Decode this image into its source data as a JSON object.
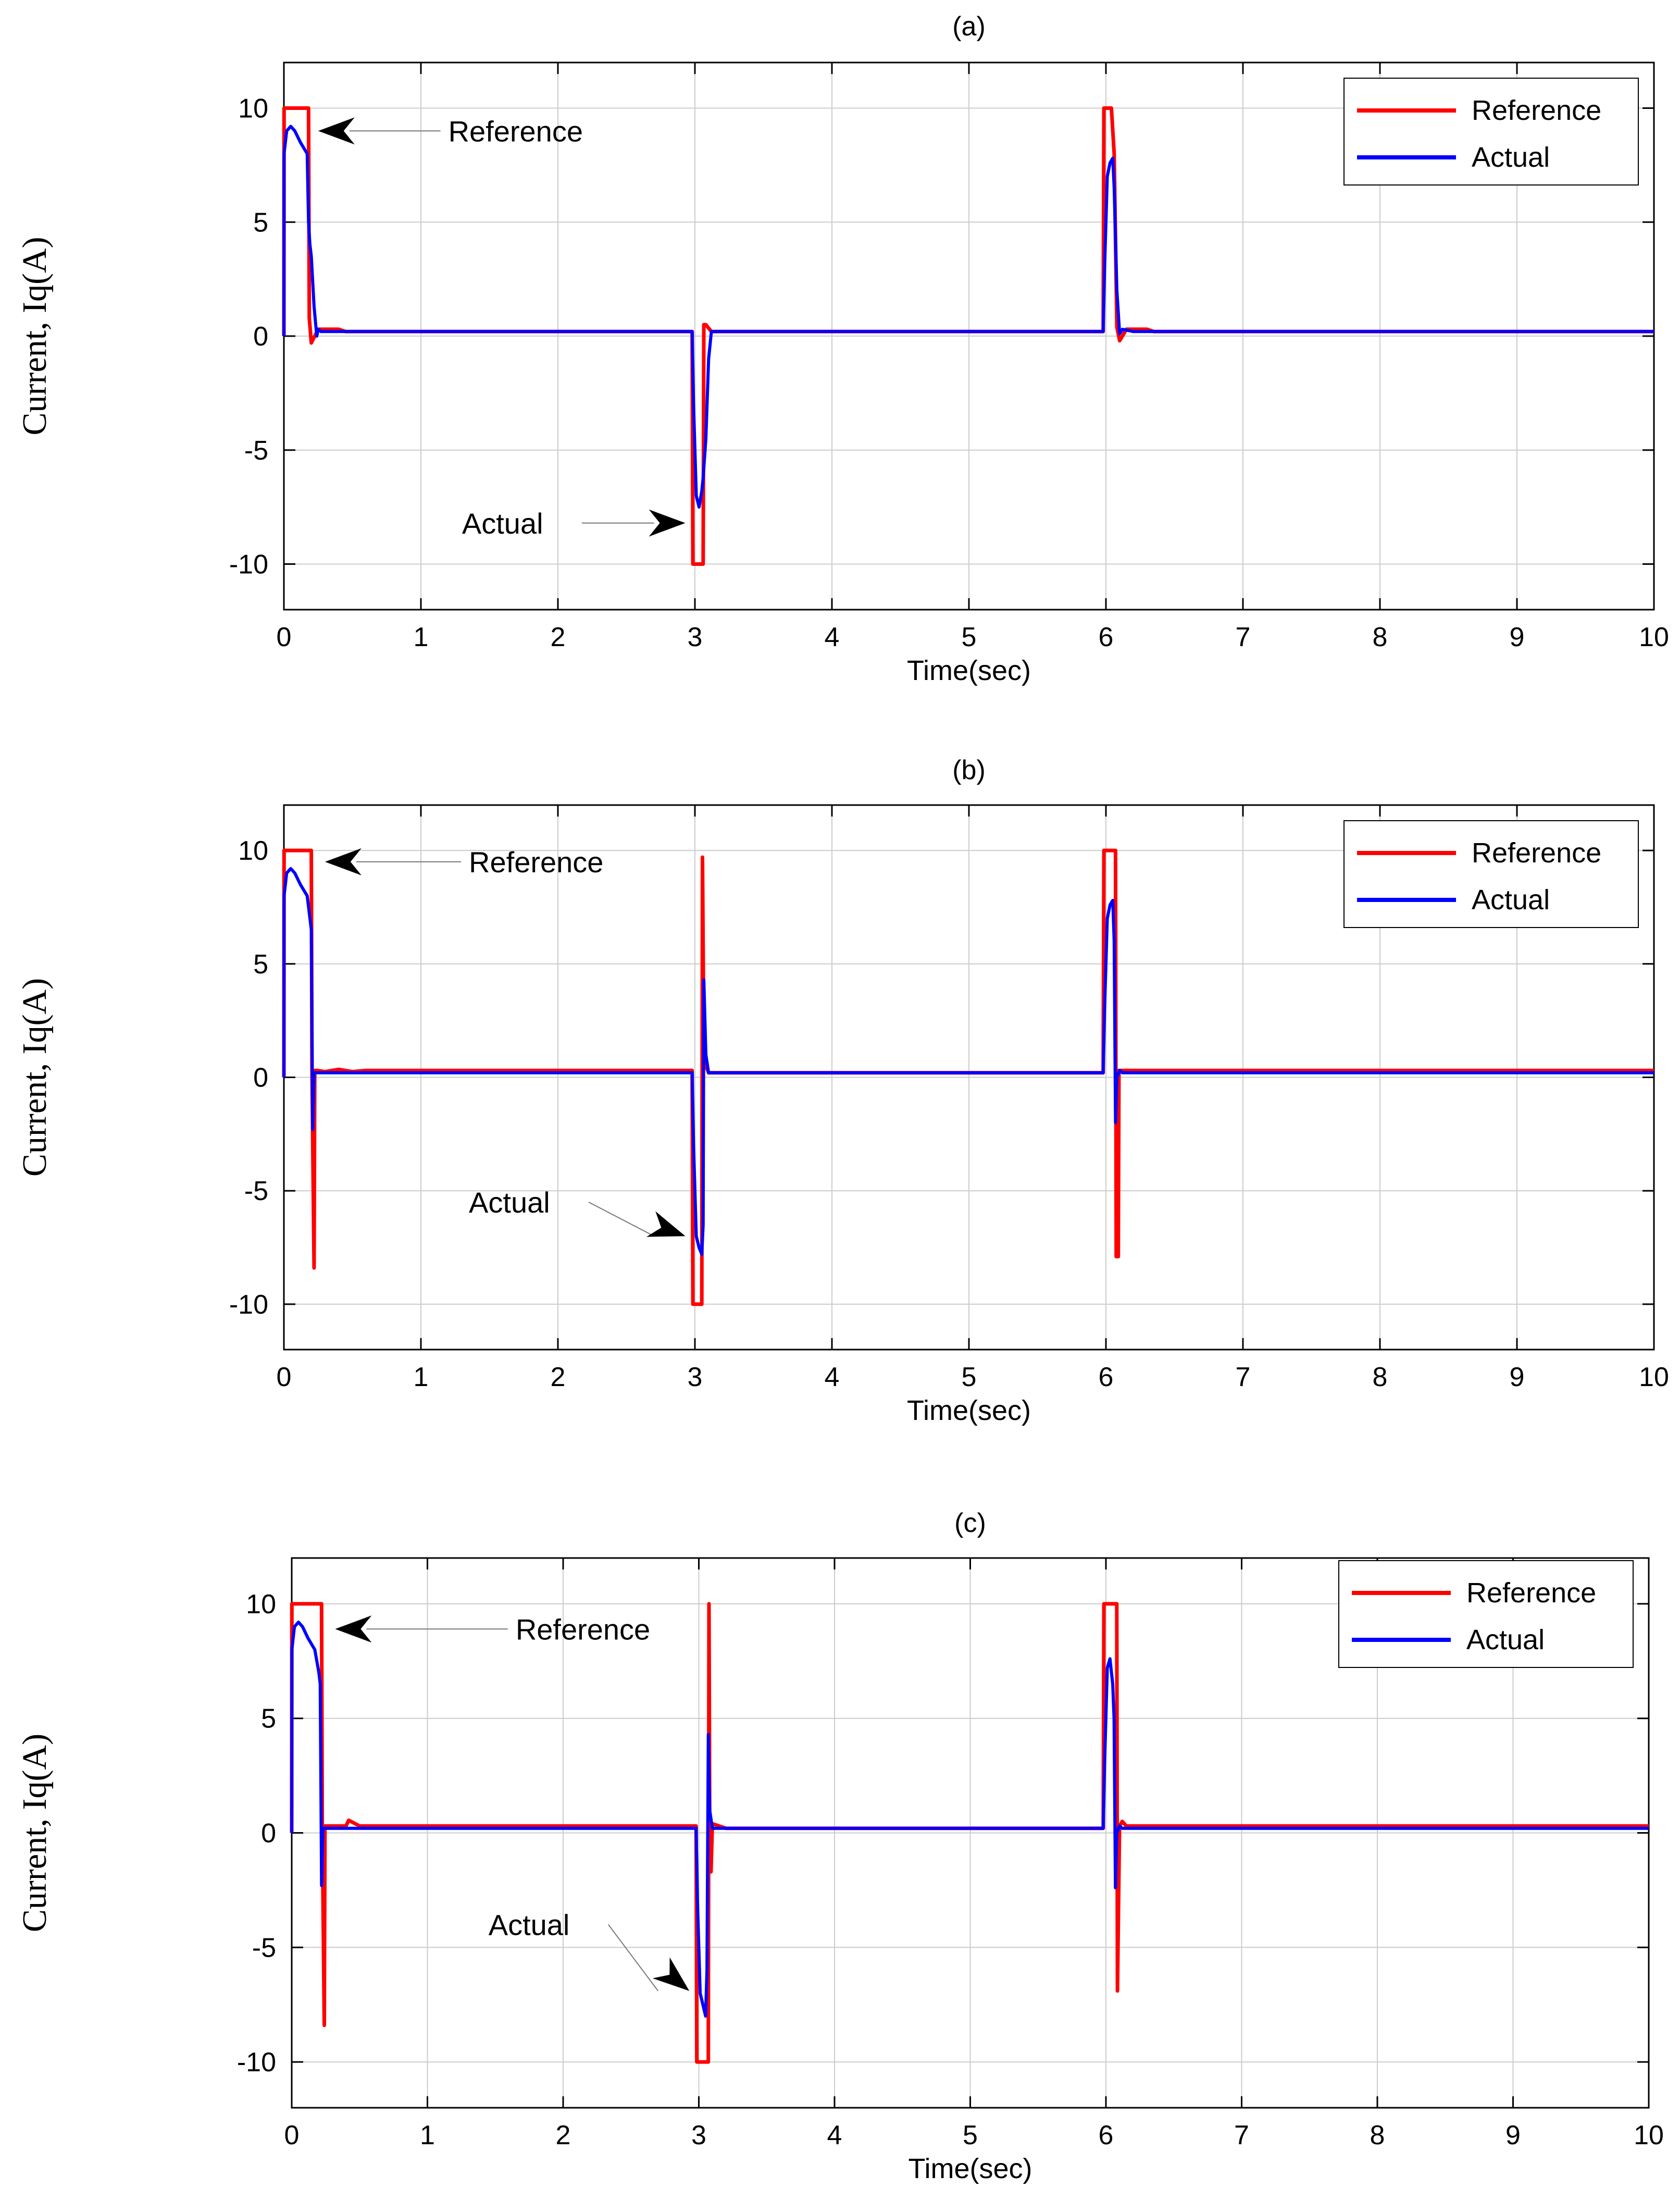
{
  "figure": {
    "colors": {
      "reference": "#ff0000",
      "actual": "#0000ff",
      "grid": "#cccccc",
      "axis": "#000000",
      "background": "#ffffff"
    }
  },
  "chart_data": [
    {
      "type": "line",
      "panel": "a",
      "title": "(a)",
      "xlabel": "Time(sec)",
      "ylabel": "Current, Iq(A)",
      "xlim": [
        0,
        10
      ],
      "ylim": [
        -12,
        12
      ],
      "xticks": [
        0,
        1,
        2,
        3,
        4,
        5,
        6,
        7,
        8,
        9,
        10
      ],
      "yticks": [
        -10,
        -5,
        0,
        5,
        10
      ],
      "grid": true,
      "legend": {
        "position": "top-right",
        "entries": [
          "Reference",
          "Actual"
        ]
      },
      "annotations": [
        {
          "text": "Reference",
          "points_to": [
            0.25,
            9.0
          ],
          "label_at": [
            1.2,
            9.0
          ]
        },
        {
          "text": "Actual",
          "points_to": [
            2.93,
            -8.2
          ],
          "label_at": [
            1.3,
            -8.2
          ]
        }
      ],
      "series": [
        {
          "name": "Reference",
          "color": "#ff0000",
          "x": [
            0,
            0.001,
            0.18,
            0.185,
            0.2,
            0.25,
            0.3,
            0.4,
            0.45,
            2.98,
            2.985,
            3.06,
            3.065,
            3.08,
            3.12,
            5.98,
            5.985,
            6.04,
            6.06,
            6.08,
            6.1,
            6.15,
            6.3,
            6.35,
            10
          ],
          "y": [
            0,
            10,
            10,
            0.8,
            -0.3,
            0.3,
            0.3,
            0.3,
            0.2,
            0.2,
            -10,
            -10,
            0.5,
            0.5,
            0.2,
            0.2,
            10,
            10,
            8.0,
            0.4,
            -0.2,
            0.3,
            0.3,
            0.2,
            0.2
          ]
        },
        {
          "name": "Actual",
          "color": "#0000ff",
          "x": [
            0,
            0.001,
            0.02,
            0.05,
            0.08,
            0.12,
            0.17,
            0.18,
            0.19,
            0.2,
            0.22,
            0.24,
            0.25,
            0.27,
            0.3,
            0.4,
            2.98,
            2.99,
            3.01,
            3.03,
            3.05,
            3.06,
            3.08,
            3.1,
            3.12,
            3.2,
            5.98,
            5.99,
            6.01,
            6.03,
            6.05,
            6.06,
            6.08,
            6.1,
            6.12,
            6.2,
            10
          ],
          "y": [
            0,
            8.0,
            9.0,
            9.2,
            9.0,
            8.5,
            8.0,
            5.0,
            4.0,
            3.5,
            1.3,
            0.0,
            0.3,
            0.2,
            0.2,
            0.2,
            0.2,
            -3.0,
            -7.0,
            -7.5,
            -6.8,
            -6.2,
            -4.5,
            -1.0,
            0.2,
            0.2,
            0.2,
            3.0,
            7.0,
            7.6,
            7.8,
            6.5,
            2.0,
            0.1,
            0.3,
            0.2,
            0.2
          ]
        }
      ]
    },
    {
      "type": "line",
      "panel": "b",
      "title": "(b)",
      "xlabel": "Time(sec)",
      "ylabel": "Current, Iq(A)",
      "xlim": [
        0,
        10
      ],
      "ylim": [
        -12,
        12
      ],
      "xticks": [
        0,
        1,
        2,
        3,
        4,
        5,
        6,
        7,
        8,
        9,
        10
      ],
      "yticks": [
        -10,
        -5,
        0,
        5,
        10
      ],
      "grid": true,
      "legend": {
        "position": "top-right",
        "entries": [
          "Reference",
          "Actual"
        ]
      },
      "annotations": [
        {
          "text": "Reference",
          "points_to": [
            0.3,
            9.5
          ],
          "label_at": [
            1.35,
            9.5
          ]
        },
        {
          "text": "Actual",
          "points_to": [
            2.93,
            -7.0
          ],
          "label_at": [
            1.35,
            -5.5
          ]
        }
      ],
      "series": [
        {
          "name": "Reference",
          "color": "#ff0000",
          "x": [
            0,
            0.001,
            0.2,
            0.205,
            0.22,
            0.225,
            0.24,
            0.3,
            0.4,
            0.5,
            0.6,
            2.98,
            2.985,
            3.05,
            3.055,
            3.065,
            3.08,
            3.1,
            5.98,
            5.985,
            6.07,
            6.075,
            6.09,
            6.095,
            6.12,
            6.3,
            10
          ],
          "y": [
            0,
            10,
            10,
            0.3,
            -8.4,
            0.3,
            0.3,
            0.25,
            0.35,
            0.25,
            0.3,
            0.3,
            -10,
            -10,
            9.7,
            1.5,
            0.5,
            0.2,
            0.2,
            10,
            10,
            -7.9,
            -7.9,
            0.3,
            0.3,
            0.3,
            0.3
          ]
        },
        {
          "name": "Actual",
          "color": "#0000ff",
          "x": [
            0,
            0.001,
            0.02,
            0.05,
            0.08,
            0.12,
            0.17,
            0.19,
            0.2,
            0.21,
            0.22,
            0.24,
            0.3,
            0.4,
            2.98,
            2.99,
            3.01,
            3.03,
            3.05,
            3.06,
            3.065,
            3.08,
            3.1,
            3.12,
            5.98,
            5.99,
            6.01,
            6.03,
            6.05,
            6.06,
            6.07,
            6.08,
            6.1,
            6.12,
            10
          ],
          "y": [
            0,
            8.0,
            9.0,
            9.2,
            9.0,
            8.5,
            8.0,
            7.0,
            6.5,
            -2.3,
            0.2,
            0.2,
            0.2,
            0.2,
            0.2,
            -3.0,
            -7.0,
            -7.5,
            -7.8,
            -6.5,
            4.3,
            1.0,
            0.2,
            0.2,
            0.2,
            3.0,
            7.0,
            7.6,
            7.8,
            6.0,
            -2.0,
            0.0,
            0.3,
            0.2,
            0.2
          ]
        }
      ]
    },
    {
      "type": "line",
      "panel": "c",
      "title": "(c)",
      "xlabel": "Time(sec)",
      "ylabel": "Current, Iq(A)",
      "xlim": [
        0,
        10
      ],
      "ylim": [
        -12,
        12
      ],
      "xticks": [
        0,
        1,
        2,
        3,
        4,
        5,
        6,
        7,
        8,
        9,
        10
      ],
      "yticks": [
        -10,
        -5,
        0,
        5,
        10
      ],
      "grid": true,
      "legend": {
        "position": "top-right",
        "entries": [
          "Reference",
          "Actual"
        ]
      },
      "annotations": [
        {
          "text": "Reference",
          "points_to": [
            0.32,
            8.9
          ],
          "label_at": [
            1.65,
            8.9
          ]
        },
        {
          "text": "Actual",
          "points_to": [
            2.93,
            -6.9
          ],
          "label_at": [
            1.45,
            -4.0
          ]
        }
      ],
      "series": [
        {
          "name": "Reference",
          "color": "#ff0000",
          "x": [
            0,
            0.001,
            0.22,
            0.225,
            0.24,
            0.245,
            0.26,
            0.4,
            0.42,
            0.5,
            2.98,
            2.985,
            3.07,
            3.075,
            3.08,
            3.09,
            3.1,
            3.2,
            5.98,
            5.985,
            6.08,
            6.085,
            6.1,
            6.12,
            6.15,
            6.3,
            10
          ],
          "y": [
            0,
            10,
            10,
            0.3,
            -8.4,
            0.3,
            0.3,
            0.3,
            0.55,
            0.3,
            0.3,
            -10,
            -10,
            10.0,
            1.0,
            -1.7,
            0.4,
            0.2,
            0.2,
            10,
            10,
            -6.9,
            0.3,
            0.5,
            0.3,
            0.3,
            0.3
          ]
        },
        {
          "name": "Actual",
          "color": "#0000ff",
          "x": [
            0,
            0.001,
            0.02,
            0.05,
            0.08,
            0.12,
            0.17,
            0.2,
            0.21,
            0.22,
            0.23,
            0.25,
            0.4,
            2.98,
            2.99,
            3.01,
            3.03,
            3.05,
            3.06,
            3.07,
            3.08,
            3.1,
            3.12,
            5.98,
            5.99,
            6.01,
            6.03,
            6.05,
            6.06,
            6.07,
            6.08,
            6.1,
            6.12,
            10
          ],
          "y": [
            0,
            8.0,
            9.0,
            9.2,
            9.0,
            8.5,
            8.0,
            7.0,
            6.5,
            -2.3,
            0.2,
            0.2,
            0.2,
            0.2,
            -3.0,
            -7.0,
            -7.5,
            -8.0,
            -6.0,
            4.3,
            1.0,
            0.2,
            0.2,
            0.2,
            3.0,
            7.2,
            7.6,
            6.5,
            5.0,
            -2.4,
            0.0,
            0.3,
            0.2,
            0.2
          ]
        }
      ]
    }
  ]
}
